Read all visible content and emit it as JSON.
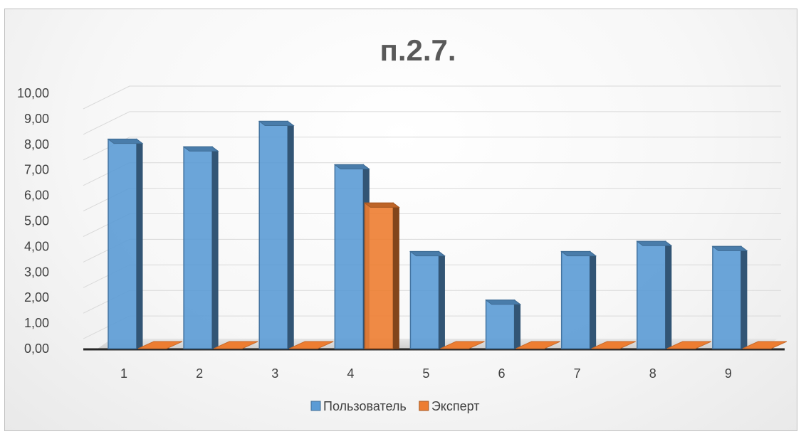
{
  "chart_data": {
    "type": "bar",
    "title": "п.2.7.",
    "categories": [
      "1",
      "2",
      "3",
      "4",
      "5",
      "6",
      "7",
      "8",
      "9"
    ],
    "series": [
      {
        "name": "Пользователь",
        "color": "#5b9bd5",
        "values": [
          8.2,
          7.9,
          8.9,
          7.2,
          3.8,
          1.9,
          3.8,
          4.2,
          4.0
        ]
      },
      {
        "name": "Эксперт",
        "color": "#ed7d31",
        "values": [
          0,
          0,
          0,
          5.7,
          0,
          0,
          0,
          0,
          0
        ]
      }
    ],
    "y_ticks": [
      "0,00",
      "1,00",
      "2,00",
      "3,00",
      "4,00",
      "5,00",
      "6,00",
      "7,00",
      "8,00",
      "9,00",
      "10,00"
    ],
    "ylim": [
      0,
      10
    ],
    "grid": true,
    "legend_position": "bottom"
  }
}
